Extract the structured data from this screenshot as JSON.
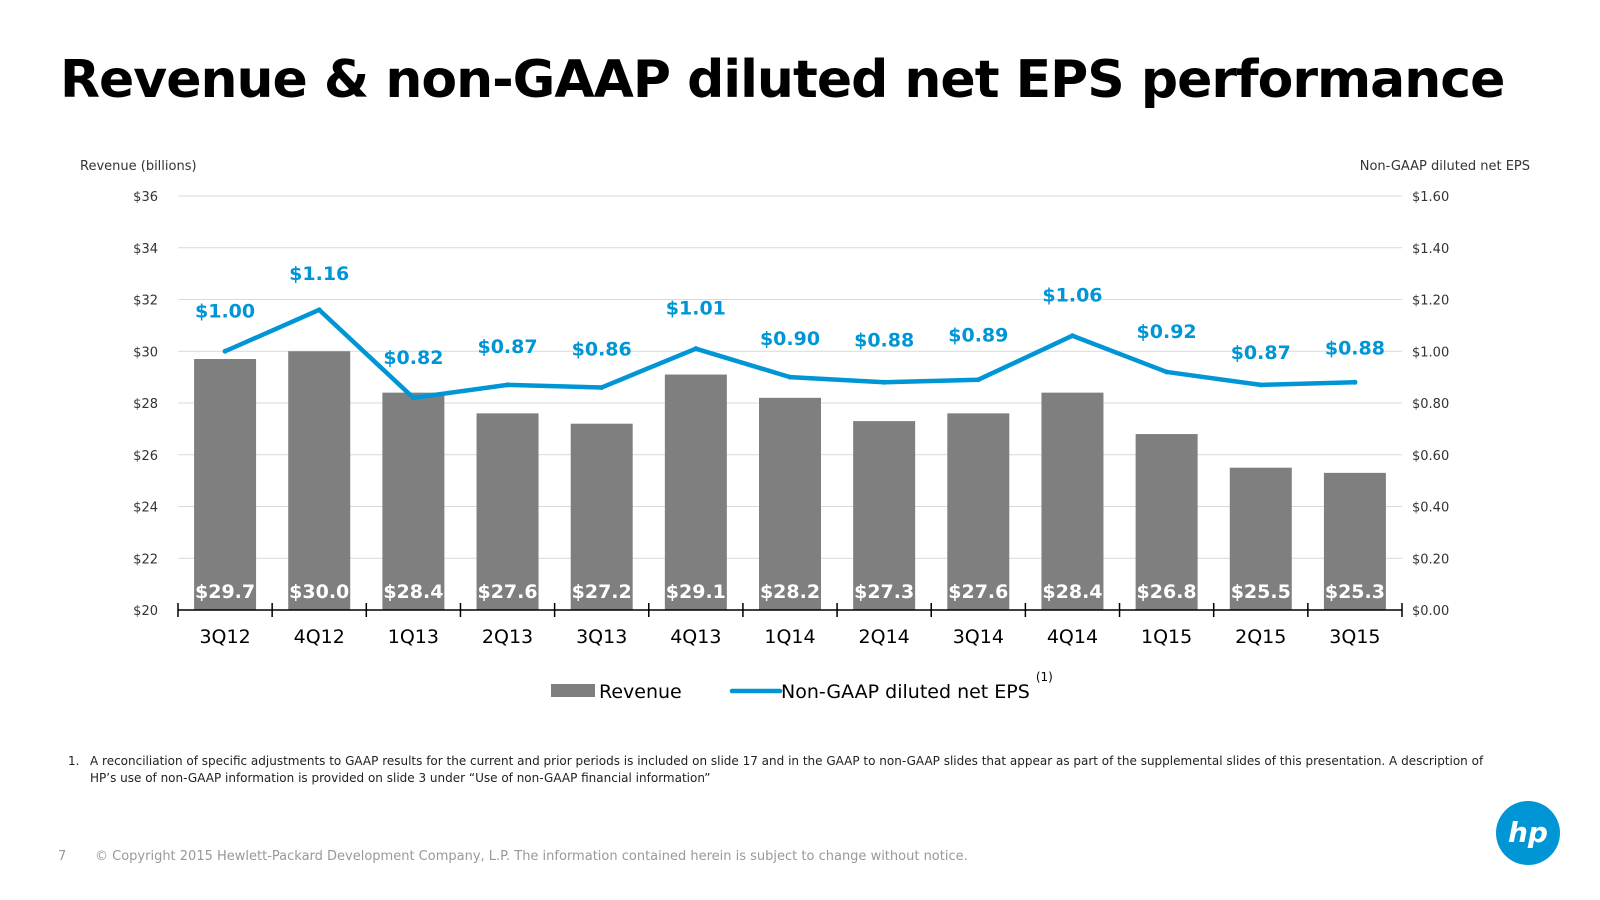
{
  "title": "Revenue & non-GAAP diluted net EPS performance",
  "footnote": {
    "number": "1.",
    "text": "A reconciliation of specific adjustments to GAAP results for the current and prior periods is included on slide 17 and in the GAAP to non-GAAP slides that appear as part of the supplemental slides of this presentation. A description of HP’s use of non-GAAP information is provided on slide 3 under “Use of non-GAAP financial information”"
  },
  "page_number": "7",
  "copyright": "© Copyright 2015 Hewlett-Packard Development Company, L.P.  The information contained herein is subject to change without notice.",
  "logo": {
    "icon": "hp-logo-icon",
    "text": "hp"
  },
  "colors": {
    "bar": "#7f7f7f",
    "line": "#0096d6",
    "grid": "#d9d9d9",
    "bar_label": "#ffffff"
  },
  "chart_data": {
    "type": "bar",
    "categories": [
      "3Q12",
      "4Q12",
      "1Q13",
      "2Q13",
      "3Q13",
      "4Q13",
      "1Q14",
      "2Q14",
      "3Q14",
      "4Q14",
      "1Q15",
      "2Q15",
      "3Q15"
    ],
    "ylabel": "Revenue (billions)",
    "y2label": "Non-GAAP diluted net EPS",
    "ylim": [
      20,
      36
    ],
    "y_ticks": [
      "$20",
      "$22",
      "$24",
      "$26",
      "$28",
      "$30",
      "$32",
      "$34",
      "$36"
    ],
    "y2lim": [
      0,
      1.6
    ],
    "y2_ticks": [
      "$0.00",
      "$0.20",
      "$0.40",
      "$0.60",
      "$0.80",
      "$1.00",
      "$1.20",
      "$1.40",
      "$1.60"
    ],
    "grid": true,
    "legend_position": "bottom",
    "series": [
      {
        "name": "Revenue",
        "type": "bar",
        "axis": "left",
        "values": [
          29.7,
          30.0,
          28.4,
          27.6,
          27.2,
          29.1,
          28.2,
          27.3,
          27.6,
          28.4,
          26.8,
          25.5,
          25.3
        ],
        "labels": [
          "$29.7",
          "$30.0",
          "$28.4",
          "$27.6",
          "$27.2",
          "$29.1",
          "$28.2",
          "$27.3",
          "$27.6",
          "$28.4",
          "$26.8",
          "$25.5",
          "$25.3"
        ]
      },
      {
        "name": "Non-GAAP diluted net EPS",
        "name_superscript": "(1)",
        "type": "line",
        "axis": "right",
        "values": [
          1.0,
          1.16,
          0.82,
          0.87,
          0.86,
          1.01,
          0.9,
          0.88,
          0.89,
          1.06,
          0.92,
          0.87,
          0.88
        ],
        "labels": [
          "$1.00",
          "$1.16",
          "$0.82",
          "$0.87",
          "$0.86",
          "$1.01",
          "$0.90",
          "$0.88",
          "$0.89",
          "$1.06",
          "$0.92",
          "$0.87",
          "$0.88"
        ]
      }
    ]
  }
}
